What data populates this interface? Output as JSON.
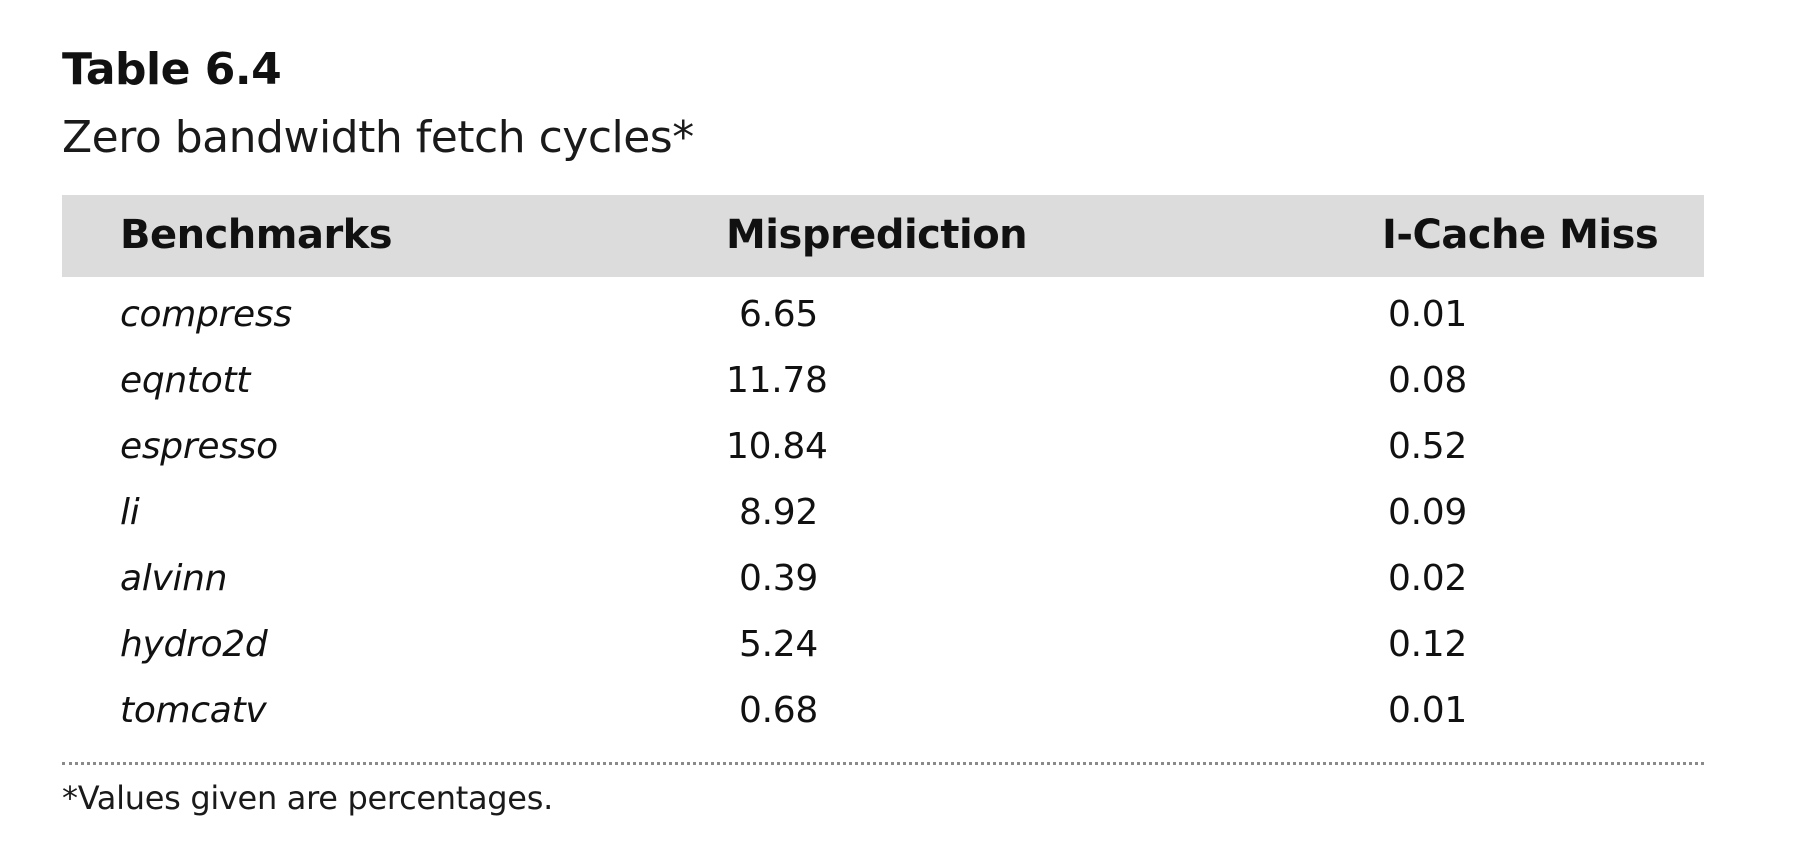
{
  "table": {
    "number": "Table 6.4",
    "caption": "Zero bandwidth fetch cycles*",
    "columns": [
      "Benchmarks",
      "Misprediction",
      "I-Cache Miss"
    ],
    "rows": [
      {
        "benchmark": "compress",
        "misprediction": "6.65",
        "icache_miss": "0.01"
      },
      {
        "benchmark": "eqntott",
        "misprediction": "11.78",
        "icache_miss": "0.08"
      },
      {
        "benchmark": "espresso",
        "misprediction": "10.84",
        "icache_miss": "0.52"
      },
      {
        "benchmark": "li",
        "misprediction": "8.92",
        "icache_miss": "0.09"
      },
      {
        "benchmark": "alvinn",
        "misprediction": "0.39",
        "icache_miss": "0.02"
      },
      {
        "benchmark": "hydro2d",
        "misprediction": "5.24",
        "icache_miss": "0.12"
      },
      {
        "benchmark": "tomcatv",
        "misprediction": "0.68",
        "icache_miss": "0.01"
      }
    ],
    "footnote": "*Values given are percentages."
  }
}
